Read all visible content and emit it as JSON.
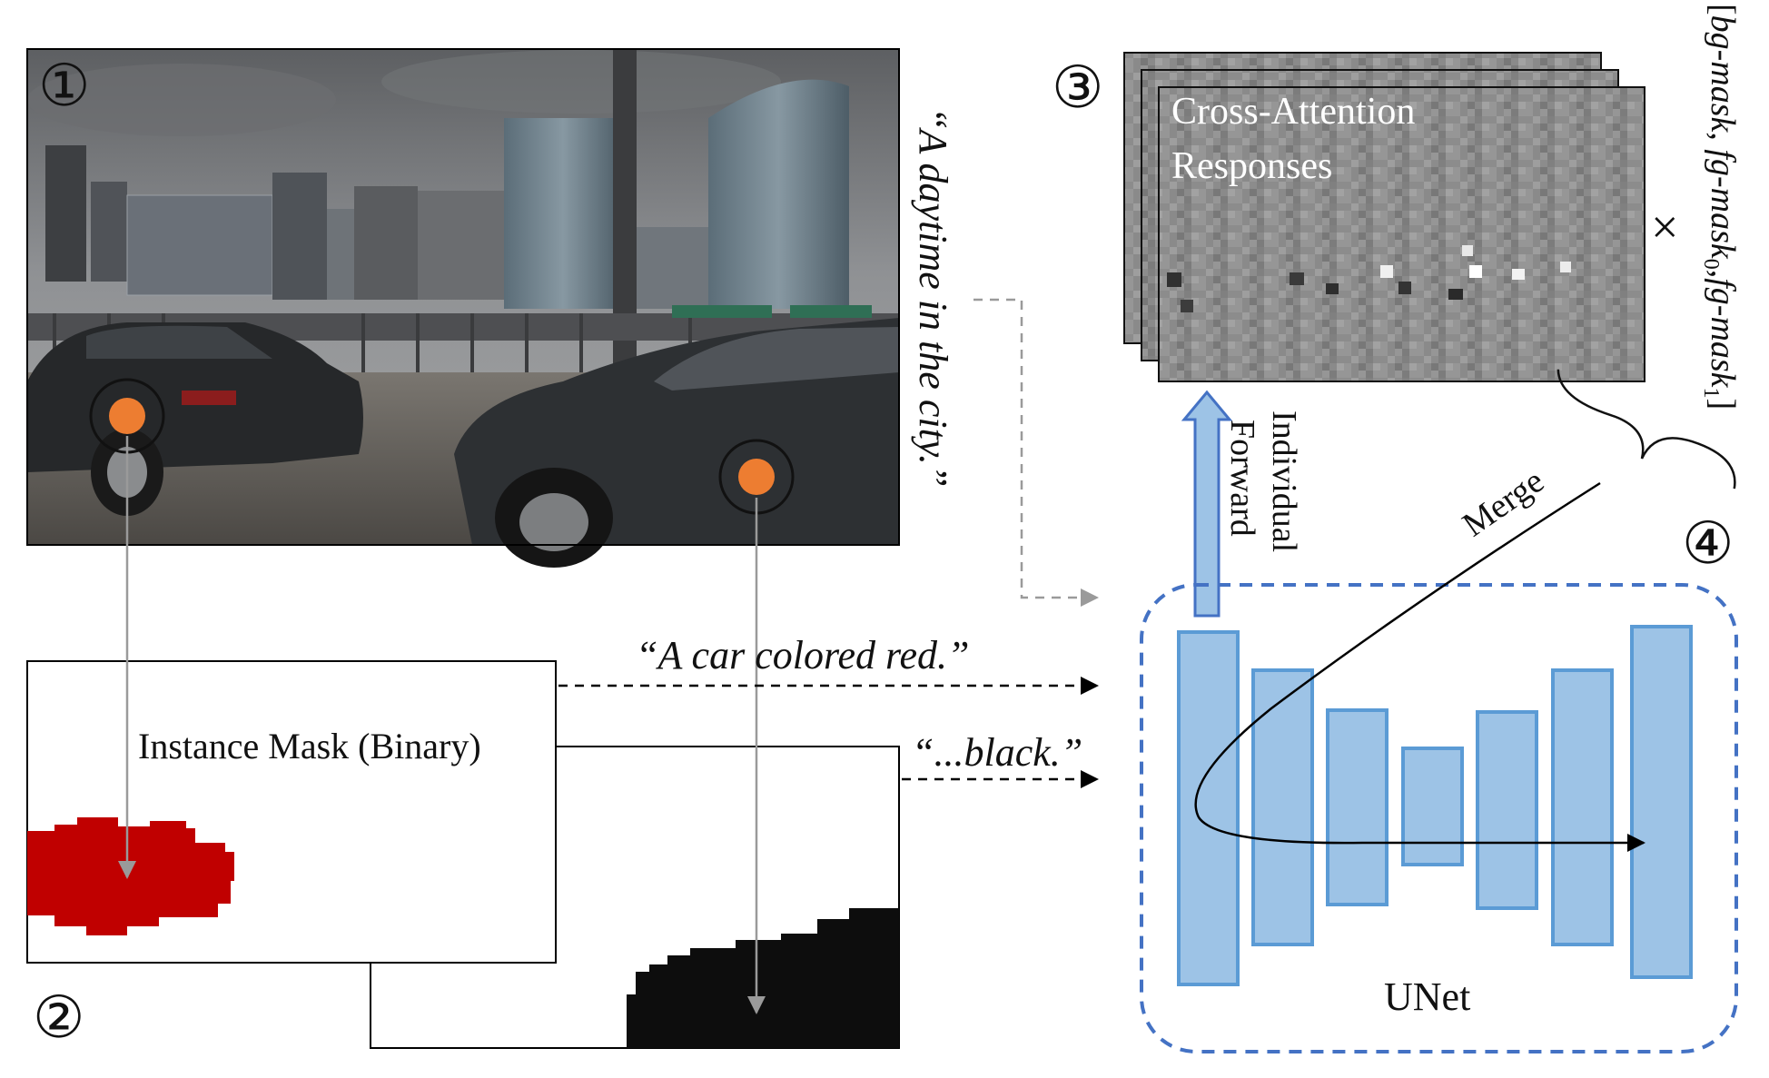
{
  "steps": {
    "one": "①",
    "two": "②",
    "three": "③",
    "four": "④"
  },
  "scene_prompt": "“A daytime in the city.”",
  "instance_mask_label": "Instance Mask (Binary)",
  "car_prompts": {
    "red": "“A car colored red.”",
    "black": "“...black.”"
  },
  "cross_attention": {
    "line1": "Cross-Attention",
    "line2": "Responses"
  },
  "multiply_symbol": "×",
  "mask_list": {
    "open": "[",
    "bg": "bg-mask",
    "sep1": ", ",
    "fg": "fg-mask",
    "sub0": "0",
    "sep2": ",",
    "sub1": "1",
    "close": "]"
  },
  "forward_label": {
    "line1": "Individual",
    "line2": "Forward"
  },
  "merge_label": "Merge",
  "unet_label": "UNet",
  "colors": {
    "unet_block_fill": "#9dc3e6",
    "unet_block_stroke": "#5b9bd5",
    "unet_border": "#4472c4",
    "red_mask": "#c00000",
    "point_marker": "#ed7d31",
    "arrow_gray": "#9a9a9a"
  }
}
